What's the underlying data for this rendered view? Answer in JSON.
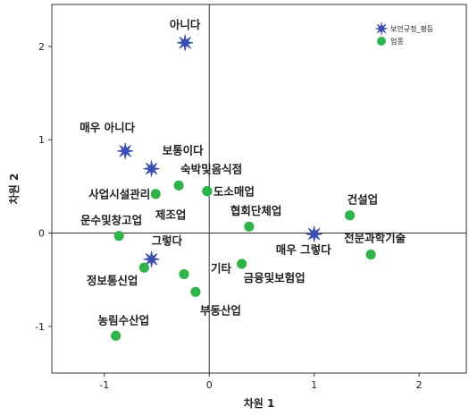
{
  "chart_data": {
    "type": "scatter",
    "xlabel": "차원 1",
    "ylabel": "차원 2",
    "xlim": [
      -1.5,
      2.45
    ],
    "ylim": [
      -1.5,
      2.45
    ],
    "xticks": [
      -1,
      0,
      1,
      2
    ],
    "yticks": [
      -1,
      0,
      1,
      2
    ],
    "reference_lines": {
      "x": 0,
      "y": 0
    },
    "legend_placement": "top-right",
    "series": [
      {
        "name": "보안규정_평등",
        "marker": "star",
        "color": "#3a4fb0",
        "points": [
          {
            "label": "아니다",
            "x": -0.23,
            "y": 2.04
          },
          {
            "label": "매우 아니다",
            "x": -0.8,
            "y": 0.88
          },
          {
            "label": "보통이다",
            "x": -0.55,
            "y": 0.69
          },
          {
            "label": "그렇다",
            "x": -0.55,
            "y": -0.28
          },
          {
            "label": "매우 그렇다",
            "x": 1.0,
            "y": -0.01
          }
        ]
      },
      {
        "name": "업종",
        "marker": "circle",
        "color": "#2fb34a",
        "points": [
          {
            "label": "숙박및음식점",
            "x": -0.29,
            "y": 0.51
          },
          {
            "label": "사업시설관리",
            "x": -0.51,
            "y": 0.42
          },
          {
            "label": "도소매업",
            "x": -0.02,
            "y": 0.45
          },
          {
            "label": "제조업",
            "x": -0.02,
            "y": 0.45
          },
          {
            "label": "협회단체업",
            "x": 0.38,
            "y": 0.07
          },
          {
            "label": "건설업",
            "x": 1.34,
            "y": 0.19
          },
          {
            "label": "전문과학기술",
            "x": 1.54,
            "y": -0.23
          },
          {
            "label": "운수및창고업",
            "x": -0.86,
            "y": -0.03
          },
          {
            "label": "정보통신업",
            "x": -0.62,
            "y": -0.37
          },
          {
            "label": "기타",
            "x": -0.24,
            "y": -0.44
          },
          {
            "label": "금융및보험업",
            "x": 0.31,
            "y": -0.33
          },
          {
            "label": "부동산업",
            "x": -0.13,
            "y": -0.63
          },
          {
            "label": "농림수산업",
            "x": -0.89,
            "y": -1.1
          }
        ]
      }
    ]
  }
}
